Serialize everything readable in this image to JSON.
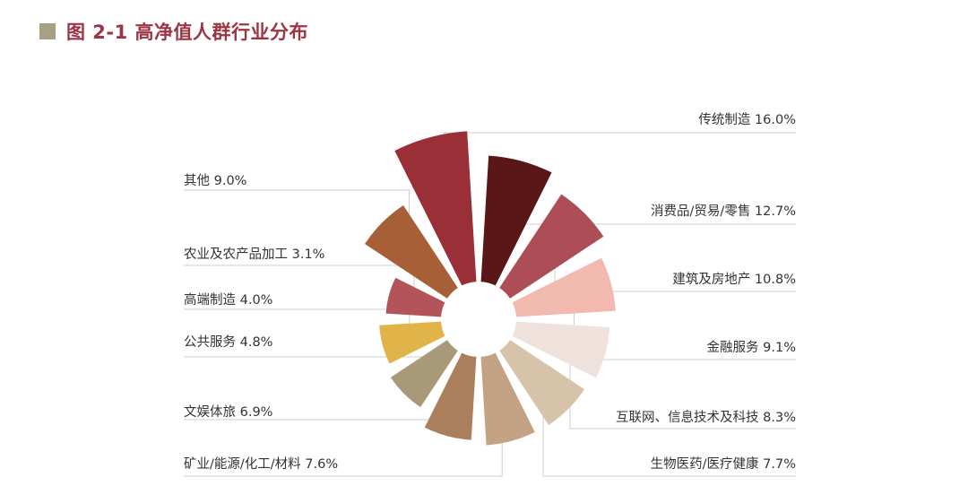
{
  "title": "图 2-1 高净值人群行业分布",
  "colors": {
    "title": "#9b3443",
    "title_square": "#a89f84",
    "leader_line": "#cfcfcf"
  },
  "chart_data": {
    "type": "pie",
    "variant": "rose (polar area) with center hole",
    "title": "图 2-1 高净值人群行业分布",
    "unit": "%",
    "legend": "none (direct labels with leader lines)",
    "slices": [
      {
        "name": "传统制造",
        "value": 16.0,
        "label": "传统制造 16.0%",
        "color": "#9b2f37"
      },
      {
        "name": "消费品/贸易/零售",
        "value": 12.7,
        "label": "消费品/贸易/零售 12.7%",
        "color": "#5a1718"
      },
      {
        "name": "建筑及房地产",
        "value": 10.8,
        "label": "建筑及房地产 10.8%",
        "color": "#ad4e56"
      },
      {
        "name": "金融服务",
        "value": 9.1,
        "label": "金融服务 9.1%",
        "color": "#f2b9ae"
      },
      {
        "name": "互联网、信息技术及科技",
        "value": 8.3,
        "label": "互联网、信息技术及科技 8.3%",
        "color": "#efe1db"
      },
      {
        "name": "生物医药/医疗健康",
        "value": 7.7,
        "label": "生物医药/医疗健康 7.7%",
        "color": "#d7c3a9"
      },
      {
        "name": "矿业/能源/化工/材料",
        "value": 7.6,
        "label": "矿业/能源/化工/材料 7.6%",
        "color": "#c4a384"
      },
      {
        "name": "文娱体旅",
        "value": 6.9,
        "label": "文娱体旅 6.9%",
        "color": "#ab7f5b"
      },
      {
        "name": "公共服务",
        "value": 4.8,
        "label": "公共服务 4.8%",
        "color": "#a89a79"
      },
      {
        "name": "高端制造",
        "value": 4.0,
        "label": "高端制造 4.0%",
        "color": "#e0b448"
      },
      {
        "name": "农业及农产品加工",
        "value": 3.1,
        "label": "农业及农产品加工 3.1%",
        "color": "#b2545a"
      },
      {
        "name": "其他",
        "value": 9.0,
        "label": "其他 9.0%",
        "color": "#a65f37"
      }
    ]
  }
}
